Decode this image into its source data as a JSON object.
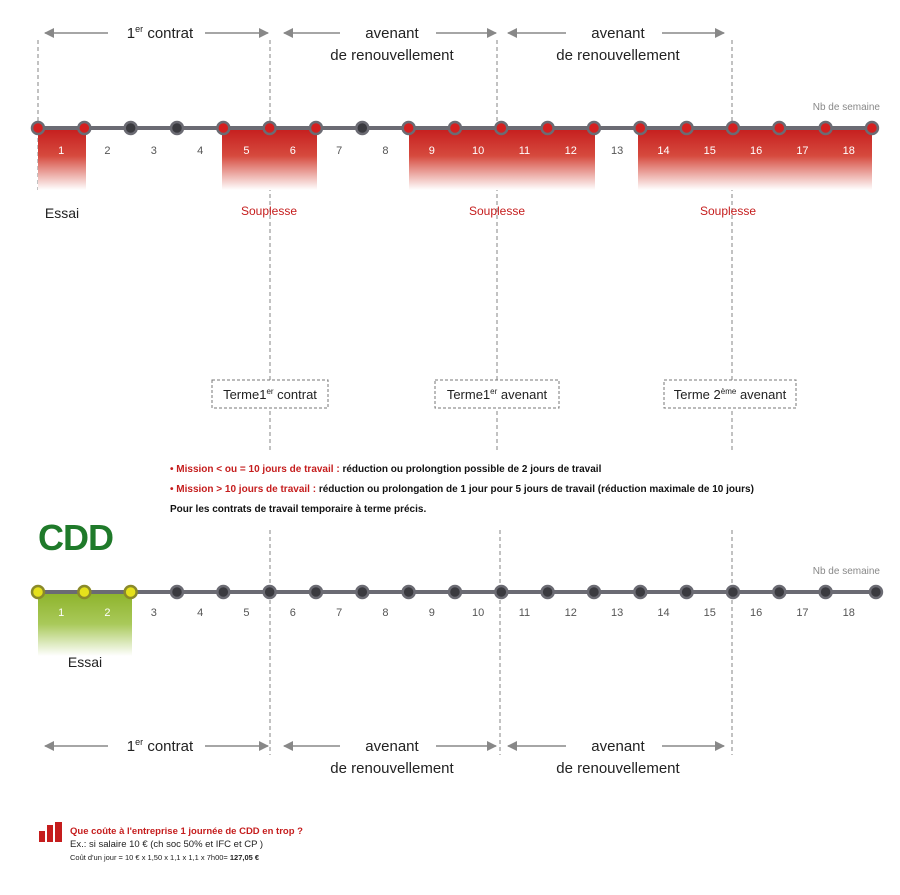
{
  "top_timeline": {
    "unit_label": "Nb de semaine",
    "weeks": [
      "1",
      "2",
      "3",
      "4",
      "5",
      "6",
      "7",
      "8",
      "9",
      "10",
      "11",
      "12",
      "13",
      "14",
      "15",
      "16",
      "17",
      "18"
    ],
    "highlighted_weeks": [
      1,
      5,
      6,
      9,
      10,
      11,
      12,
      14,
      15,
      16,
      17,
      18
    ],
    "trial_label": "Essai",
    "flex_label": "Souplesse",
    "top_segments": {
      "first_contract": {
        "main": "1",
        "sup": "er",
        "rest": " contrat"
      },
      "renewal_1": {
        "line1": "avenant",
        "line2": "de renouvellement"
      },
      "renewal_2": {
        "line1": "avenant",
        "line2": "de renouvellement"
      }
    },
    "end_boxes": [
      {
        "pre": "Terme1",
        "sup": "er",
        "post": " contrat"
      },
      {
        "pre": "Terme1",
        "sup": "er",
        "post": " avenant"
      },
      {
        "pre": "Terme 2",
        "sup": "ème",
        "post": " avenant"
      }
    ]
  },
  "notes": {
    "line1_red": "• Mission < ou = 10 jours de travail :",
    "line1_black": " réduction ou prolongtion   possible de 2 jours de travail",
    "line2_red": "• Mission  > 10 jours de travail :",
    "line2_black": " réduction ou prolongation de 1 jour pour 5 jours de travail (réduction maximale de 10 jours)",
    "line3": "Pour les contrats de travail temporaire à terme précis."
  },
  "cdd": {
    "title": "CDD",
    "unit_label": "Nb de semaine",
    "trial_label": "Essai",
    "weeks": [
      "1",
      "2",
      "3",
      "4",
      "5",
      "6",
      "7",
      "8",
      "9",
      "10",
      "11",
      "12",
      "13",
      "14",
      "15",
      "16",
      "17",
      "18"
    ],
    "trial_weeks": [
      1,
      2
    ],
    "bottom_segments": {
      "first_contract": {
        "main": "1",
        "sup": "er",
        "rest": " contrat"
      },
      "renewal_1": {
        "line1": "avenant",
        "line2": "de renouvellement"
      },
      "renewal_2": {
        "line1": "avenant",
        "line2": "de renouvellement"
      }
    }
  },
  "cost": {
    "question": "Que coûte à l'entreprise 1 journée  de CDD en trop ?",
    "example": "Ex.: si salaire 10 € (ch soc 50% et IFC et CP )",
    "calc_prefix": "Coût d'un jour = 10 € x 1,50 x 1,1 x 1,1 x 7h00= ",
    "calc_result": "127,05 €"
  },
  "colors": {
    "accent_red": "#c51d1d",
    "cdd_green": "#1f7a2a",
    "trial_green": "#8db32a",
    "line_grey": "#6b6b73"
  }
}
